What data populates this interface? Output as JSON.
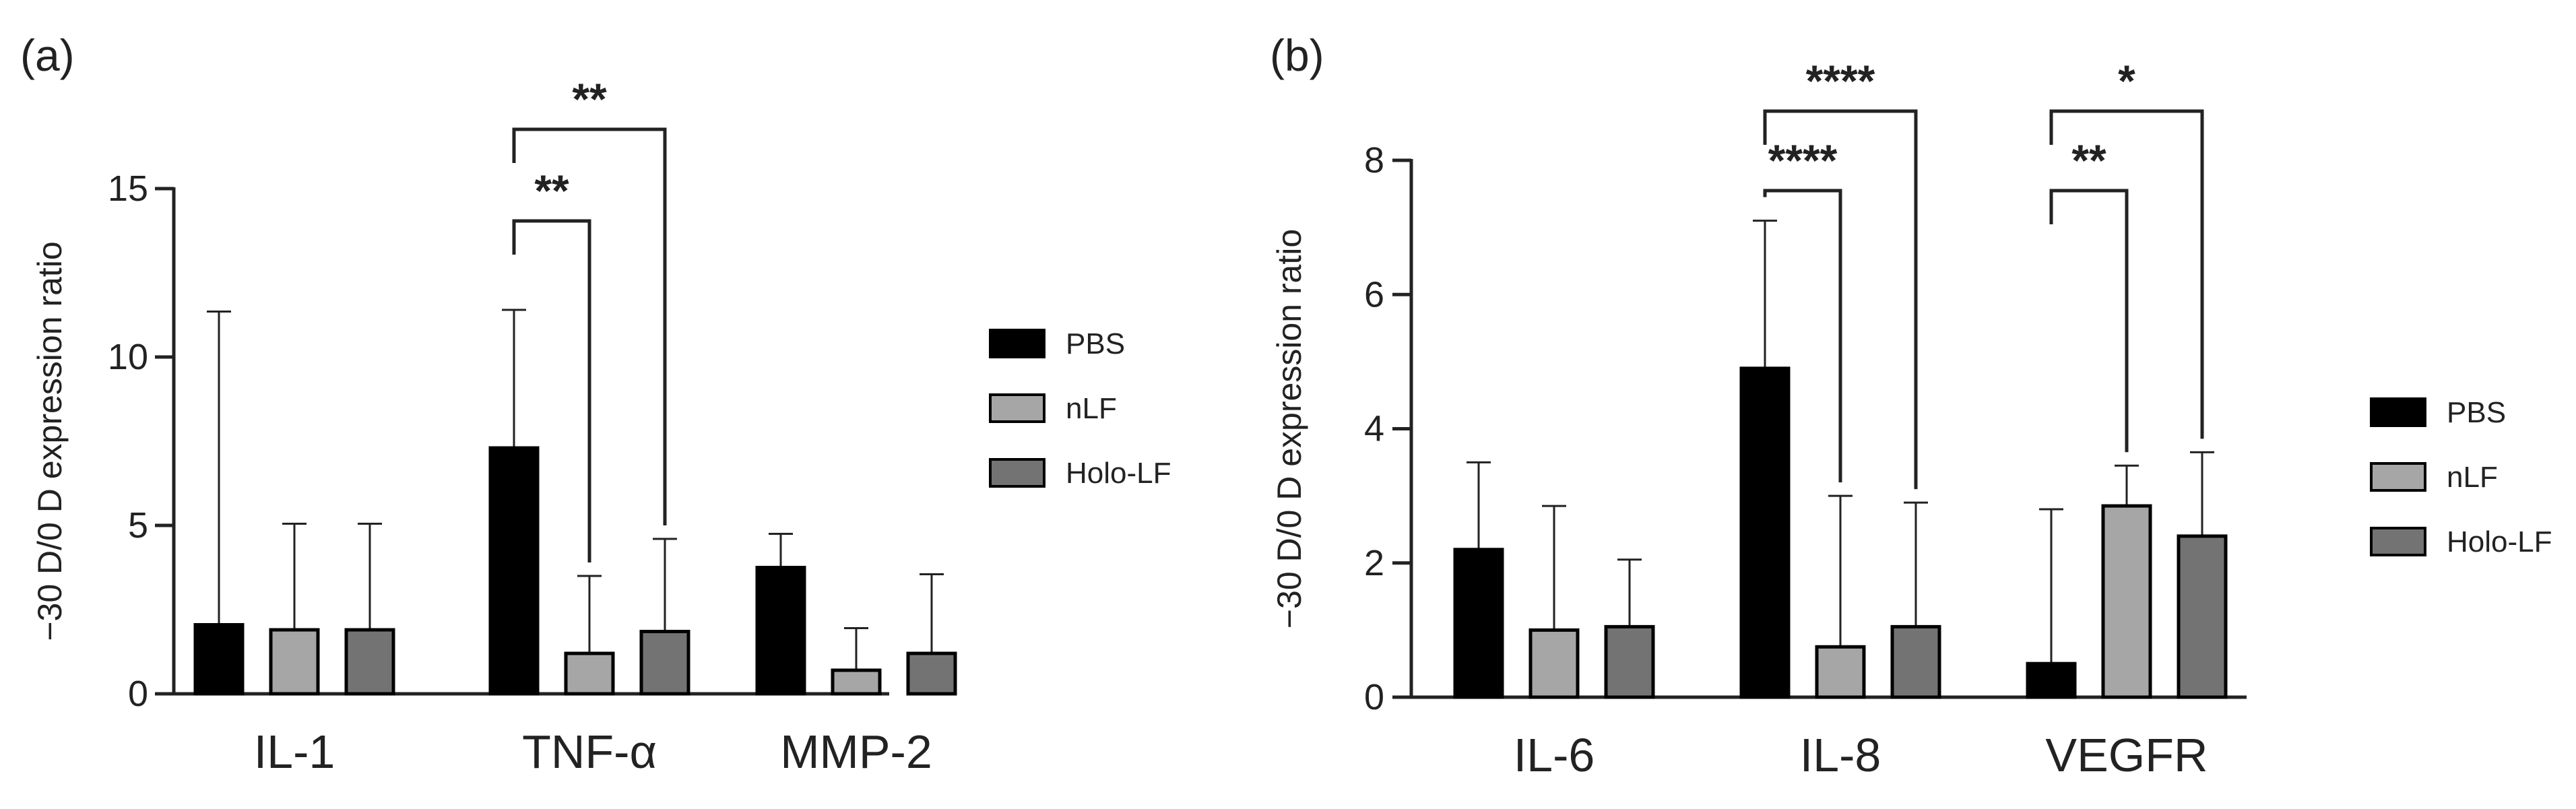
{
  "colors": {
    "PBS": "#000000",
    "nLF": "#a6a6a6",
    "Holo-LF": "#737373",
    "axis": "#222222"
  },
  "chart_data": [
    {
      "panel_label": "(a)",
      "type": "bar",
      "ylabel": "−30 D/0 D expression ratio",
      "ylim": [
        0,
        15
      ],
      "yticks": [
        0,
        5,
        10,
        15
      ],
      "ytick_labels": [
        "0",
        "5",
        "10",
        "15"
      ],
      "categories": [
        "IL-1",
        "TNF-α",
        "MMP-2"
      ],
      "series": [
        {
          "name": "PBS",
          "values": [
            2.05,
            7.3,
            3.75
          ],
          "errors": [
            9.3,
            4.1,
            1.0
          ]
        },
        {
          "name": "nLF",
          "values": [
            1.9,
            1.2,
            0.7
          ],
          "errors": [
            3.15,
            2.3,
            1.25
          ]
        },
        {
          "name": "Holo-LF",
          "values": [
            1.9,
            1.85,
            1.2
          ],
          "errors": [
            3.15,
            2.75,
            2.35
          ]
        }
      ],
      "significance": [
        {
          "category": 1,
          "from": 0,
          "to": 1,
          "label": "**"
        },
        {
          "category": 1,
          "from": 0,
          "to": 2,
          "label": "**"
        }
      ],
      "legend": {
        "position": "right",
        "entries": [
          "PBS",
          "nLF",
          "Holo-LF"
        ]
      }
    },
    {
      "panel_label": "(b)",
      "type": "bar",
      "ylabel": "−30 D/0 D expression ratio",
      "ylim": [
        0,
        8
      ],
      "yticks": [
        0,
        2,
        4,
        6,
        8
      ],
      "ytick_labels": [
        "0",
        "2",
        "4",
        "6",
        "8"
      ],
      "categories": [
        "IL-6",
        "IL-8",
        "VEGFR"
      ],
      "series": [
        {
          "name": "PBS",
          "values": [
            2.2,
            4.9,
            0.5
          ],
          "errors": [
            1.3,
            2.2,
            2.3
          ]
        },
        {
          "name": "nLF",
          "values": [
            1.0,
            0.75,
            2.85
          ],
          "errors": [
            1.85,
            2.25,
            0.6
          ]
        },
        {
          "name": "Holo-LF",
          "values": [
            1.05,
            1.05,
            2.4
          ],
          "errors": [
            1.0,
            1.85,
            1.25
          ]
        }
      ],
      "significance": [
        {
          "category": 1,
          "from": 0,
          "to": 1,
          "label": "****"
        },
        {
          "category": 1,
          "from": 0,
          "to": 2,
          "label": "****"
        },
        {
          "category": 2,
          "from": 0,
          "to": 1,
          "label": "**"
        },
        {
          "category": 2,
          "from": 0,
          "to": 2,
          "label": "*"
        }
      ],
      "legend": {
        "position": "right",
        "entries": [
          "PBS",
          "nLF",
          "Holo-LF"
        ]
      }
    }
  ]
}
